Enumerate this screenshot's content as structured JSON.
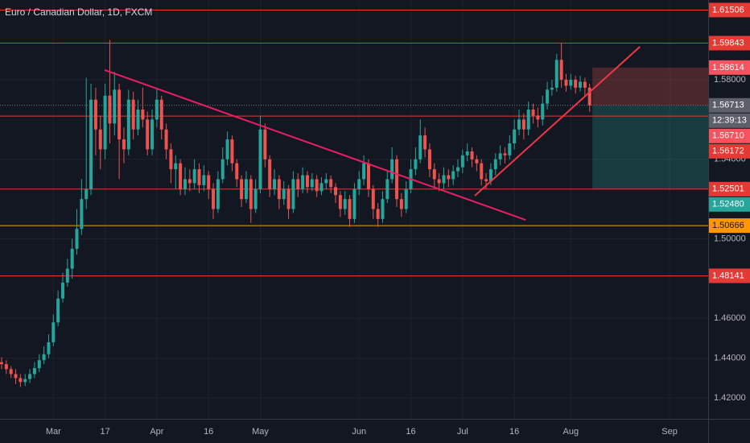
{
  "chart_data": {
    "type": "candlestick",
    "title": "Euro / Canadian Dollar, 1D, FXCM",
    "up_color": "#26a69a",
    "down_color": "#ef5350",
    "xlim": [
      -0.34,
      150.2
    ],
    "xticks": [
      {
        "value": 11,
        "label": "Mar"
      },
      {
        "value": 22,
        "label": "17"
      },
      {
        "value": 33,
        "label": "Apr"
      },
      {
        "value": 44,
        "label": "16"
      },
      {
        "value": 55,
        "label": "May"
      },
      {
        "value": 76,
        "label": "Jun"
      },
      {
        "value": 87,
        "label": "16"
      },
      {
        "value": 98,
        "label": "Jul"
      },
      {
        "value": 109,
        "label": "16"
      },
      {
        "value": 121,
        "label": "Aug"
      },
      {
        "value": 142,
        "label": "Sep"
      }
    ],
    "ylim": [
      1.4095,
      1.6201
    ],
    "yticks": [
      {
        "value": 1.42,
        "label": "1.42000"
      },
      {
        "value": 1.44,
        "label": "1.44000"
      },
      {
        "value": 1.46,
        "label": "1.46000"
      },
      {
        "value": 1.5,
        "label": "1.50000"
      },
      {
        "value": 1.54,
        "label": "1.54000"
      },
      {
        "value": 1.58,
        "label": "1.58000"
      }
    ],
    "grid": true,
    "open": [
      1.438,
      1.437,
      1.4345,
      1.432,
      1.43,
      1.428,
      1.4295,
      1.432,
      1.435,
      1.439,
      1.442,
      1.448,
      1.458,
      1.47,
      1.478,
      1.485,
      1.495,
      1.505,
      1.52,
      1.525,
      1.57,
      1.555,
      1.545,
      1.572,
      1.558,
      1.575,
      1.55,
      1.545,
      1.57,
      1.555,
      1.565,
      1.56,
      1.545,
      1.56,
      1.57,
      1.555,
      1.545,
      1.535,
      1.538,
      1.525,
      1.53,
      1.528,
      1.535,
      1.527,
      1.532,
      1.525,
      1.515,
      1.53,
      1.54,
      1.55,
      1.538,
      1.53,
      1.52,
      1.53,
      1.515,
      1.525,
      1.555,
      1.54,
      1.525,
      1.53,
      1.52,
      1.525,
      1.515,
      1.53,
      1.525,
      1.532,
      1.526,
      1.53,
      1.524,
      1.528,
      1.53,
      1.526,
      1.522,
      1.515,
      1.52,
      1.51,
      1.525,
      1.53,
      1.538,
      1.525,
      1.515,
      1.51,
      1.52,
      1.53,
      1.54,
      1.52,
      1.515,
      1.525,
      1.535,
      1.54,
      1.552,
      1.545,
      1.535,
      1.53,
      1.528,
      1.532,
      1.53,
      1.534,
      1.536,
      1.542,
      1.544,
      1.54,
      1.538,
      1.53,
      1.529,
      1.535,
      1.54,
      1.543,
      1.542,
      1.548,
      1.555,
      1.56,
      1.555,
      1.565,
      1.562,
      1.56,
      1.568,
      1.575,
      1.576,
      1.59,
      1.58,
      1.577,
      1.58,
      1.576,
      1.579,
      1.576
    ],
    "high": [
      1.4405,
      1.439,
      1.436,
      1.4345,
      1.432,
      1.432,
      1.4345,
      1.438,
      1.442,
      1.446,
      1.452,
      1.462,
      1.474,
      1.483,
      1.49,
      1.5,
      1.515,
      1.53,
      1.581,
      1.578,
      1.576,
      1.562,
      1.578,
      1.6,
      1.584,
      1.578,
      1.556,
      1.575,
      1.574,
      1.57,
      1.576,
      1.564,
      1.565,
      1.576,
      1.572,
      1.558,
      1.548,
      1.542,
      1.54,
      1.536,
      1.535,
      1.54,
      1.538,
      1.537,
      1.534,
      1.528,
      1.534,
      1.546,
      1.554,
      1.552,
      1.54,
      1.532,
      1.534,
      1.532,
      1.53,
      1.562,
      1.558,
      1.542,
      1.535,
      1.532,
      1.529,
      1.527,
      1.534,
      1.533,
      1.536,
      1.534,
      1.533,
      1.532,
      1.531,
      1.533,
      1.532,
      1.528,
      1.524,
      1.524,
      1.522,
      1.528,
      1.534,
      1.542,
      1.54,
      1.527,
      1.518,
      1.524,
      1.534,
      1.546,
      1.542,
      1.523,
      1.529,
      1.54,
      1.546,
      1.56,
      1.556,
      1.548,
      1.538,
      1.533,
      1.536,
      1.535,
      1.537,
      1.54,
      1.545,
      1.548,
      1.546,
      1.542,
      1.54,
      1.533,
      1.538,
      1.543,
      1.547,
      1.546,
      1.552,
      1.56,
      1.565,
      1.563,
      1.569,
      1.568,
      1.566,
      1.572,
      1.579,
      1.58,
      1.593,
      1.5984,
      1.583,
      1.583,
      1.582,
      1.582,
      1.581,
      1.578
    ],
    "low": [
      1.4345,
      1.432,
      1.43,
      1.427,
      1.4255,
      1.426,
      1.4275,
      1.43,
      1.433,
      1.437,
      1.44,
      1.446,
      1.456,
      1.468,
      1.476,
      1.48,
      1.492,
      1.502,
      1.515,
      1.522,
      1.542,
      1.535,
      1.54,
      1.548,
      1.552,
      1.53,
      1.538,
      1.542,
      1.55,
      1.552,
      1.556,
      1.542,
      1.542,
      1.556,
      1.55,
      1.54,
      1.528,
      1.525,
      1.522,
      1.522,
      1.524,
      1.525,
      1.523,
      1.524,
      1.52,
      1.51,
      1.513,
      1.528,
      1.537,
      1.534,
      1.526,
      1.516,
      1.518,
      1.508,
      1.513,
      1.523,
      1.536,
      1.521,
      1.522,
      1.515,
      1.517,
      1.51,
      1.513,
      1.521,
      1.523,
      1.523,
      1.524,
      1.521,
      1.522,
      1.525,
      1.523,
      1.518,
      1.511,
      1.512,
      1.506,
      1.508,
      1.522,
      1.527,
      1.521,
      1.51,
      1.506,
      1.508,
      1.518,
      1.528,
      1.516,
      1.511,
      1.513,
      1.523,
      1.532,
      1.538,
      1.541,
      1.531,
      1.526,
      1.524,
      1.525,
      1.526,
      1.527,
      1.531,
      1.533,
      1.539,
      1.536,
      1.534,
      1.527,
      1.525,
      1.527,
      1.532,
      1.537,
      1.538,
      1.54,
      1.545,
      1.552,
      1.55,
      1.552,
      1.558,
      1.556,
      1.557,
      1.565,
      1.572,
      1.574,
      1.576,
      1.574,
      1.575,
      1.573,
      1.574,
      1.572,
      1.564
    ],
    "close": [
      1.437,
      1.4345,
      1.432,
      1.43,
      1.428,
      1.4295,
      1.432,
      1.435,
      1.439,
      1.442,
      1.448,
      1.458,
      1.47,
      1.478,
      1.485,
      1.495,
      1.505,
      1.52,
      1.525,
      1.57,
      1.555,
      1.545,
      1.572,
      1.558,
      1.575,
      1.55,
      1.545,
      1.57,
      1.555,
      1.565,
      1.56,
      1.545,
      1.56,
      1.57,
      1.555,
      1.545,
      1.535,
      1.538,
      1.525,
      1.53,
      1.528,
      1.535,
      1.527,
      1.532,
      1.525,
      1.515,
      1.53,
      1.54,
      1.55,
      1.538,
      1.53,
      1.52,
      1.53,
      1.515,
      1.525,
      1.555,
      1.54,
      1.525,
      1.53,
      1.52,
      1.525,
      1.515,
      1.53,
      1.525,
      1.532,
      1.526,
      1.53,
      1.524,
      1.528,
      1.53,
      1.526,
      1.522,
      1.515,
      1.52,
      1.51,
      1.525,
      1.53,
      1.538,
      1.525,
      1.515,
      1.51,
      1.52,
      1.53,
      1.54,
      1.52,
      1.515,
      1.525,
      1.535,
      1.54,
      1.552,
      1.545,
      1.535,
      1.53,
      1.528,
      1.532,
      1.53,
      1.534,
      1.536,
      1.542,
      1.544,
      1.54,
      1.538,
      1.53,
      1.529,
      1.535,
      1.54,
      1.543,
      1.542,
      1.548,
      1.555,
      1.56,
      1.555,
      1.565,
      1.562,
      1.56,
      1.568,
      1.575,
      1.576,
      1.59,
      1.58,
      1.577,
      1.58,
      1.576,
      1.579,
      1.576,
      1.5671
    ],
    "hlines": [
      {
        "value": 1.61506,
        "color": "#e53935"
      },
      {
        "value": 1.59843,
        "color": "#e53935"
      },
      {
        "value": 1.56172,
        "color": "#e53935"
      },
      {
        "value": 1.52501,
        "color": "#e53935"
      },
      {
        "value": 1.50666,
        "color": "#ff9800"
      },
      {
        "value": 1.48141,
        "color": "#e53935"
      }
    ],
    "trendlines": [
      {
        "x": [
          21.9,
          111.4
        ],
        "y": [
          1.5849,
          1.5095
        ],
        "color": "#e91e63"
      },
      {
        "x": [
          100.6,
          135.7
        ],
        "y": [
          1.5217,
          1.5966
        ],
        "color": "#f23645"
      }
    ],
    "last_price": {
      "value": 1.56713,
      "countdown": "12:39:13"
    },
    "position": {
      "stop": 1.58614,
      "entry": {
        "value": 1.5671,
        "label": "1.56710"
      },
      "target": {
        "value": 1.5248,
        "label": "1.52480"
      }
    }
  }
}
